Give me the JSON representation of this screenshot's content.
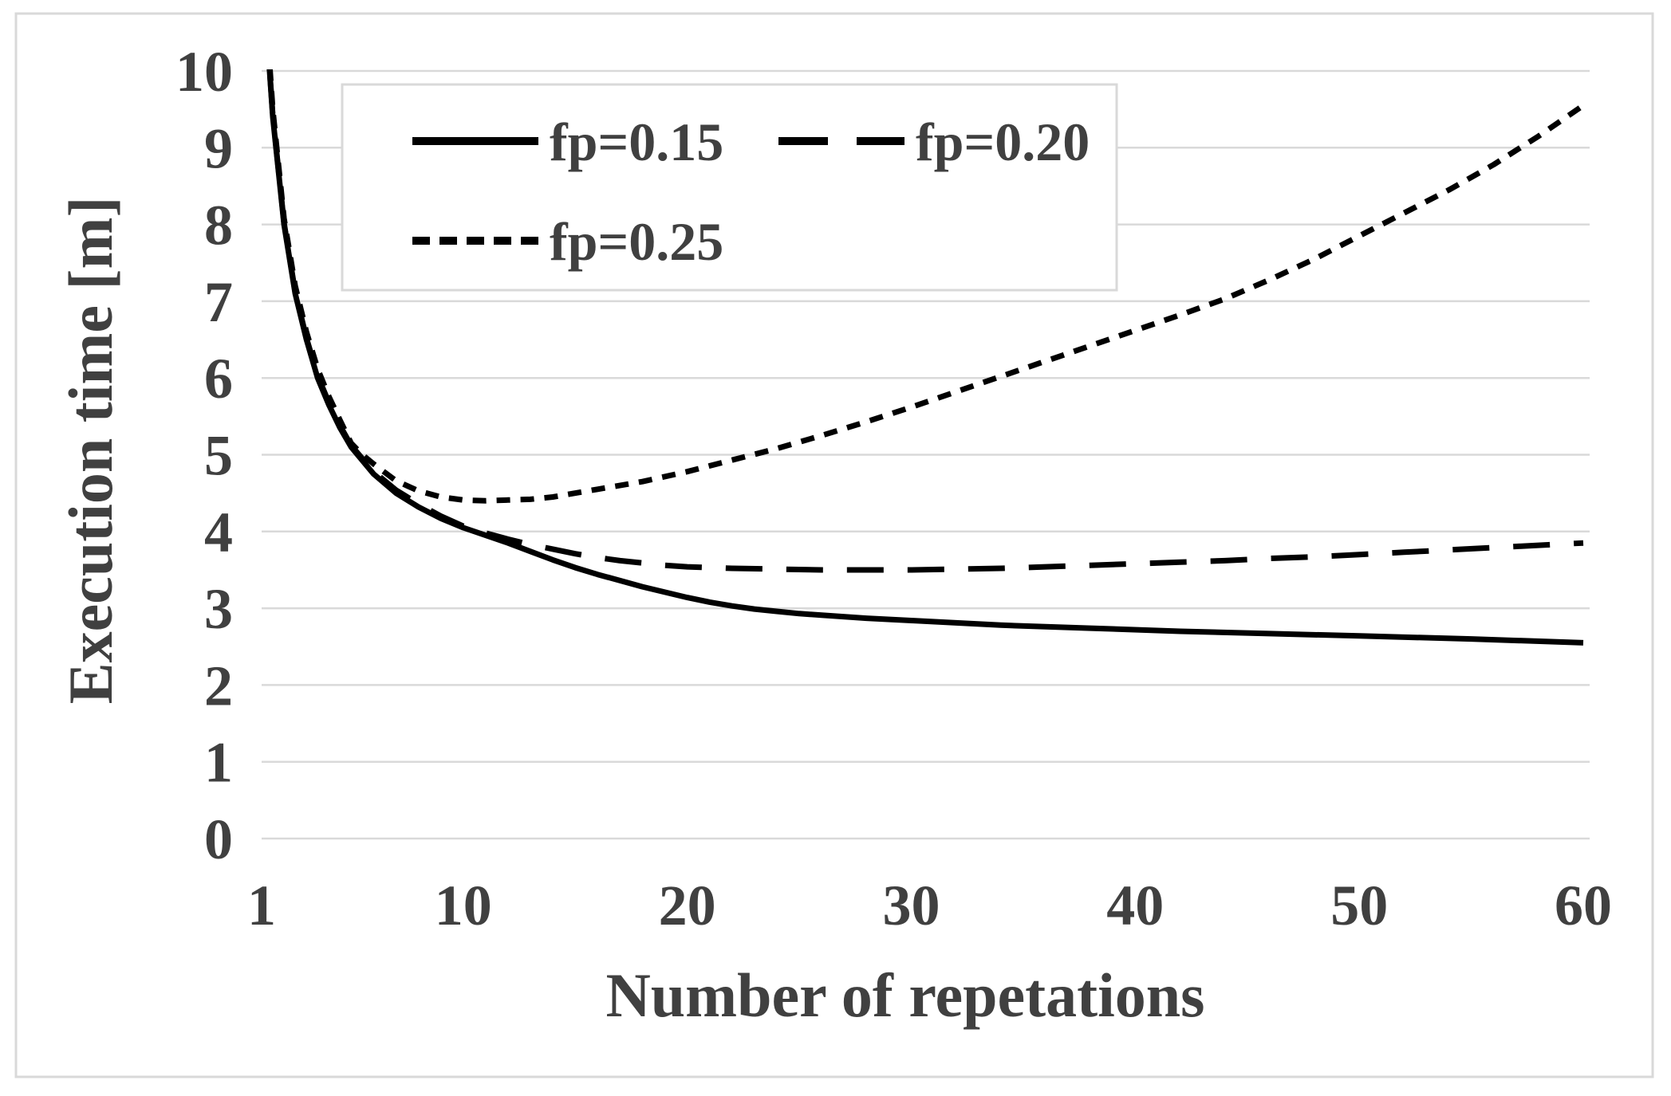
{
  "colors": {
    "text": "#404040",
    "grid": "#d9d9d9",
    "border": "#d9d9d9",
    "line": "#000000",
    "background": "#ffffff"
  },
  "chart_data": {
    "type": "line",
    "title": "",
    "xlabel": "Number of repetations",
    "ylabel": "Execution time [m]",
    "xlim": [
      1,
      60
    ],
    "ylim": [
      0,
      10
    ],
    "x_ticks": [
      1,
      10,
      20,
      30,
      40,
      50,
      60
    ],
    "y_ticks": [
      0,
      1,
      2,
      3,
      4,
      5,
      6,
      7,
      8,
      9,
      10
    ],
    "grid": "horizontal-only",
    "legend_position": "inside-top-left",
    "series": [
      {
        "name": "fp=0.15",
        "style": "solid",
        "points": [
          [
            1,
            11.5
          ],
          [
            1.5,
            9.4
          ],
          [
            2,
            8.0
          ],
          [
            2.5,
            7.1
          ],
          [
            3,
            6.5
          ],
          [
            3.5,
            6.0
          ],
          [
            4,
            5.65
          ],
          [
            4.5,
            5.35
          ],
          [
            5,
            5.1
          ],
          [
            6,
            4.75
          ],
          [
            7,
            4.5
          ],
          [
            8,
            4.32
          ],
          [
            9,
            4.17
          ],
          [
            10,
            4.05
          ],
          [
            11,
            3.95
          ],
          [
            12,
            3.85
          ],
          [
            13,
            3.74
          ],
          [
            14,
            3.63
          ],
          [
            15,
            3.53
          ],
          [
            16,
            3.44
          ],
          [
            17,
            3.36
          ],
          [
            18,
            3.28
          ],
          [
            19,
            3.21
          ],
          [
            20,
            3.14
          ],
          [
            21,
            3.08
          ],
          [
            22,
            3.03
          ],
          [
            23,
            2.99
          ],
          [
            24,
            2.96
          ],
          [
            25,
            2.93
          ],
          [
            26,
            2.91
          ],
          [
            28,
            2.87
          ],
          [
            30,
            2.84
          ],
          [
            34,
            2.78
          ],
          [
            38,
            2.74
          ],
          [
            42,
            2.7
          ],
          [
            46,
            2.67
          ],
          [
            50,
            2.64
          ],
          [
            55,
            2.6
          ],
          [
            60,
            2.55
          ]
        ]
      },
      {
        "name": "fp=0.20",
        "style": "long-dash",
        "points": [
          [
            1,
            11.5
          ],
          [
            1.5,
            9.42
          ],
          [
            2,
            8.02
          ],
          [
            2.5,
            7.12
          ],
          [
            3,
            6.52
          ],
          [
            3.5,
            6.03
          ],
          [
            4,
            5.68
          ],
          [
            4.5,
            5.38
          ],
          [
            5,
            5.12
          ],
          [
            6,
            4.78
          ],
          [
            7,
            4.54
          ],
          [
            8,
            4.36
          ],
          [
            9,
            4.2
          ],
          [
            10,
            4.07
          ],
          [
            11,
            3.98
          ],
          [
            12,
            3.9
          ],
          [
            13,
            3.83
          ],
          [
            14,
            3.77
          ],
          [
            15,
            3.71
          ],
          [
            16,
            3.66
          ],
          [
            17,
            3.62
          ],
          [
            18,
            3.59
          ],
          [
            19,
            3.56
          ],
          [
            20,
            3.54
          ],
          [
            22,
            3.52
          ],
          [
            24,
            3.51
          ],
          [
            26,
            3.5
          ],
          [
            28,
            3.5
          ],
          [
            30,
            3.5
          ],
          [
            32,
            3.51
          ],
          [
            34,
            3.52
          ],
          [
            36,
            3.54
          ],
          [
            38,
            3.56
          ],
          [
            40,
            3.58
          ],
          [
            42,
            3.6
          ],
          [
            44,
            3.62
          ],
          [
            46,
            3.65
          ],
          [
            48,
            3.67
          ],
          [
            50,
            3.7
          ],
          [
            52,
            3.73
          ],
          [
            54,
            3.76
          ],
          [
            56,
            3.79
          ],
          [
            58,
            3.82
          ],
          [
            60,
            3.85
          ]
        ]
      },
      {
        "name": "fp=0.25",
        "style": "short-dash",
        "points": [
          [
            1,
            11.6
          ],
          [
            1.5,
            9.5
          ],
          [
            2,
            8.08
          ],
          [
            2.5,
            7.2
          ],
          [
            3,
            6.6
          ],
          [
            3.5,
            6.12
          ],
          [
            4,
            5.76
          ],
          [
            4.5,
            5.45
          ],
          [
            5,
            5.15
          ],
          [
            5.5,
            5.0
          ],
          [
            6,
            4.88
          ],
          [
            7,
            4.66
          ],
          [
            8,
            4.53
          ],
          [
            9,
            4.45
          ],
          [
            10,
            4.41
          ],
          [
            11,
            4.4
          ],
          [
            12,
            4.41
          ],
          [
            13,
            4.42
          ],
          [
            14,
            4.45
          ],
          [
            16,
            4.55
          ],
          [
            18,
            4.65
          ],
          [
            20,
            4.78
          ],
          [
            22,
            4.93
          ],
          [
            24,
            5.08
          ],
          [
            26,
            5.25
          ],
          [
            28,
            5.43
          ],
          [
            30,
            5.62
          ],
          [
            32,
            5.82
          ],
          [
            34,
            6.02
          ],
          [
            36,
            6.22
          ],
          [
            38,
            6.42
          ],
          [
            40,
            6.62
          ],
          [
            42,
            6.82
          ],
          [
            44,
            7.03
          ],
          [
            46,
            7.28
          ],
          [
            48,
            7.55
          ],
          [
            50,
            7.85
          ],
          [
            52,
            8.15
          ],
          [
            54,
            8.45
          ],
          [
            56,
            8.78
          ],
          [
            58,
            9.15
          ],
          [
            60,
            9.55
          ]
        ]
      }
    ]
  }
}
